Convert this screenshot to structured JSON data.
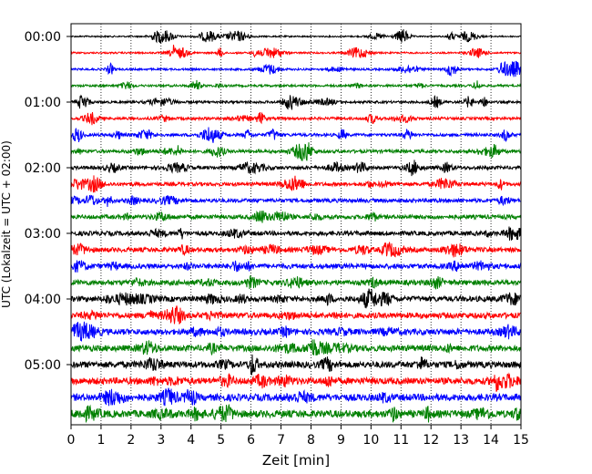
{
  "chart_data": {
    "type": "line",
    "subtype": "seismogram-helicorder",
    "xlabel": "Zeit  [min]",
    "ylabel": "UTC (Lokalzeit = UTC + 02:00)",
    "xlim": [
      0,
      15
    ],
    "x_ticks": [
      0,
      1,
      2,
      3,
      4,
      5,
      6,
      7,
      8,
      9,
      10,
      11,
      12,
      13,
      14,
      15
    ],
    "x_tick_labels": [
      "0",
      "1",
      "2",
      "3",
      "4",
      "5",
      "6",
      "7",
      "8",
      "9",
      "10",
      "11",
      "12",
      "13",
      "14",
      "15"
    ],
    "y_tick_labels": [
      "00:00",
      "01:00",
      "02:00",
      "03:00",
      "04:00",
      "05:00"
    ],
    "minutes_per_trace": 15,
    "trace_count": 24,
    "trace_colors": [
      "#000000",
      "#ff0000",
      "#0000ff",
      "#008000"
    ],
    "grid": "vertical dotted at each minute"
  }
}
